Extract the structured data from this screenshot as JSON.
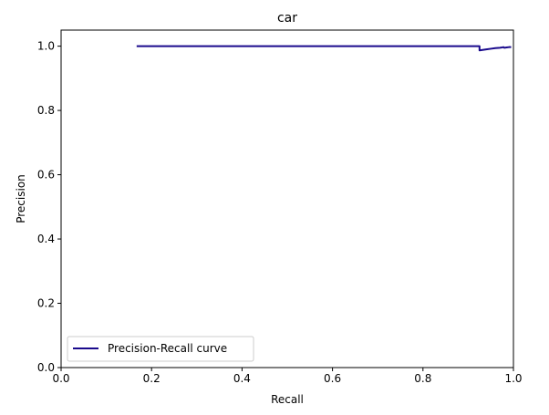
{
  "chart_data": {
    "type": "line",
    "title": "car",
    "xlabel": "Recall",
    "ylabel": "Precision",
    "xlim": [
      0.0,
      1.0
    ],
    "ylim": [
      0.0,
      1.05
    ],
    "xticks": [
      "0.0",
      "0.2",
      "0.4",
      "0.6",
      "0.8",
      "1.0"
    ],
    "yticks": [
      "0.0",
      "0.2",
      "0.4",
      "0.6",
      "0.8",
      "1.0"
    ],
    "grid": false,
    "legend_position": "lower-left",
    "series": [
      {
        "name": "Precision-Recall curve",
        "color": "#1a0a8c",
        "x": [
          0.167,
          0.925,
          0.925,
          0.93,
          0.94,
          0.95,
          0.96,
          0.97,
          0.975,
          0.978,
          0.98,
          0.985,
          0.99,
          0.995
        ],
        "y": [
          1.0,
          1.0,
          0.987,
          0.988,
          0.99,
          0.992,
          0.994,
          0.995,
          0.996,
          0.997,
          0.995,
          0.996,
          0.997,
          0.997
        ]
      }
    ]
  }
}
